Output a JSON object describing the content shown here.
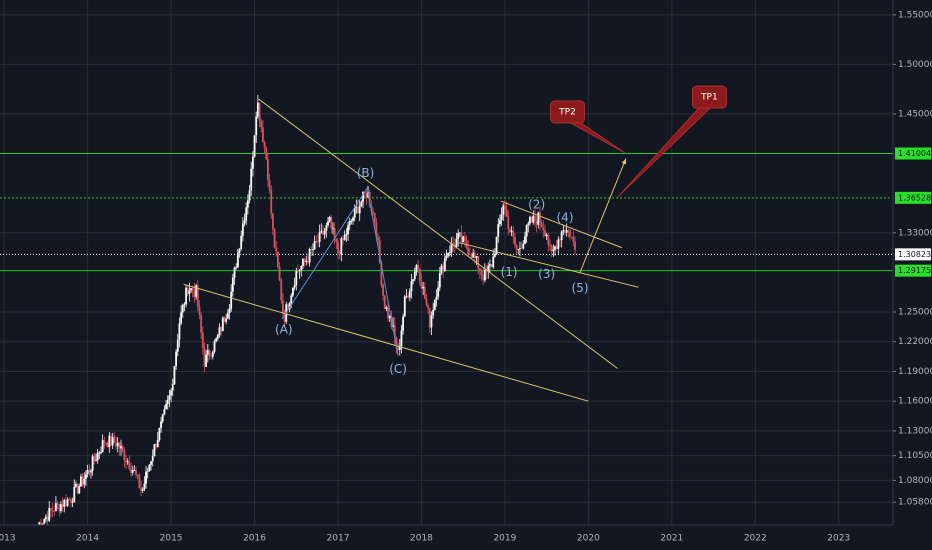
{
  "chart_data": {
    "type": "candlestick",
    "x_range": [
      2012.95,
      2023.65
    ],
    "y_range": [
      1.035,
      1.565
    ],
    "x_ticks": [
      {
        "value": 2013,
        "label": "2013"
      },
      {
        "value": 2014,
        "label": "2014"
      },
      {
        "value": 2015,
        "label": "2015"
      },
      {
        "value": 2016,
        "label": "2016"
      },
      {
        "value": 2017,
        "label": "2017"
      },
      {
        "value": 2018,
        "label": "2018"
      },
      {
        "value": 2019,
        "label": "2019"
      },
      {
        "value": 2020,
        "label": "2020"
      },
      {
        "value": 2021,
        "label": "2021"
      },
      {
        "value": 2022,
        "label": "2022"
      },
      {
        "value": 2023,
        "label": "2023"
      }
    ],
    "y_ticks": [
      {
        "value": 1.55,
        "label": "1.55000"
      },
      {
        "value": 1.5,
        "label": "1.50000"
      },
      {
        "value": 1.45,
        "label": "1.45000"
      },
      {
        "value": 1.33,
        "label": "1.33000"
      },
      {
        "value": 1.25,
        "label": "1.25000"
      },
      {
        "value": 1.22,
        "label": "1.22000"
      },
      {
        "value": 1.19,
        "label": "1.19000"
      },
      {
        "value": 1.16,
        "label": "1.16000"
      },
      {
        "value": 1.13,
        "label": "1.13000"
      },
      {
        "value": 1.105,
        "label": "1.10500"
      },
      {
        "value": 1.08,
        "label": "1.08000"
      },
      {
        "value": 1.058,
        "label": "1.05800"
      }
    ],
    "price_path": [
      [
        2013.4,
        1.035
      ],
      [
        2013.6,
        1.052
      ],
      [
        2013.8,
        1.062
      ],
      [
        2014.0,
        1.088
      ],
      [
        2014.2,
        1.12
      ],
      [
        2014.35,
        1.118
      ],
      [
        2014.55,
        1.09
      ],
      [
        2014.65,
        1.068
      ],
      [
        2014.75,
        1.1
      ],
      [
        2014.9,
        1.14
      ],
      [
        2015.0,
        1.17
      ],
      [
        2015.1,
        1.24
      ],
      [
        2015.2,
        1.275
      ],
      [
        2015.3,
        1.27
      ],
      [
        2015.4,
        1.2
      ],
      [
        2015.55,
        1.222
      ],
      [
        2015.7,
        1.26
      ],
      [
        2015.85,
        1.335
      ],
      [
        2015.95,
        1.38
      ],
      [
        2016.03,
        1.465
      ],
      [
        2016.15,
        1.4
      ],
      [
        2016.22,
        1.33
      ],
      [
        2016.3,
        1.28
      ],
      [
        2016.35,
        1.243
      ],
      [
        2016.5,
        1.29
      ],
      [
        2016.6,
        1.3
      ],
      [
        2016.75,
        1.32
      ],
      [
        2016.9,
        1.34
      ],
      [
        2017.0,
        1.31
      ],
      [
        2017.1,
        1.33
      ],
      [
        2017.2,
        1.35
      ],
      [
        2017.35,
        1.372
      ],
      [
        2017.45,
        1.34
      ],
      [
        2017.55,
        1.26
      ],
      [
        2017.65,
        1.235
      ],
      [
        2017.72,
        1.207
      ],
      [
        2017.8,
        1.26
      ],
      [
        2017.95,
        1.3
      ],
      [
        2018.1,
        1.24
      ],
      [
        2018.2,
        1.28
      ],
      [
        2018.3,
        1.31
      ],
      [
        2018.45,
        1.325
      ],
      [
        2018.6,
        1.31
      ],
      [
        2018.75,
        1.285
      ],
      [
        2018.85,
        1.3
      ],
      [
        2018.98,
        1.36
      ],
      [
        2019.05,
        1.335
      ],
      [
        2019.15,
        1.31
      ],
      [
        2019.3,
        1.34
      ],
      [
        2019.4,
        1.345
      ],
      [
        2019.5,
        1.33
      ],
      [
        2019.55,
        1.305
      ],
      [
        2019.62,
        1.32
      ],
      [
        2019.7,
        1.335
      ],
      [
        2019.78,
        1.33
      ],
      [
        2019.85,
        1.31
      ]
    ],
    "horizontal_levels": [
      {
        "price": 1.41004,
        "label": "1.41004",
        "style": "green-solid"
      },
      {
        "price": 1.36528,
        "label": "1.36528",
        "style": "green-dashed"
      },
      {
        "price": 1.30823,
        "label": "1.30823",
        "style": "white-dotted"
      },
      {
        "price": 1.29175,
        "label": "1.29175",
        "style": "green-solid"
      }
    ],
    "trendlines": [
      {
        "points": [
          [
            2016.05,
            1.465
          ],
          [
            2019.3,
            1.235
          ]
        ],
        "extended_to": [
          2020.35,
          1.193
        ],
        "color": "#d9c66a"
      },
      {
        "points": [
          [
            2015.15,
            1.278
          ],
          [
            2020.0,
            1.16
          ]
        ],
        "color": "#d9c66a"
      },
      {
        "points": [
          [
            2018.45,
            1.32
          ],
          [
            2020.6,
            1.275
          ]
        ],
        "color": "#d9c66a"
      },
      {
        "points": [
          [
            2018.95,
            1.362
          ],
          [
            2020.4,
            1.315
          ]
        ],
        "color": "#d9c66a"
      }
    ],
    "wave_path": [
      [
        2016.33,
        1.243
      ],
      [
        2017.35,
        1.375
      ],
      [
        2017.72,
        1.206
      ]
    ],
    "projection_arrow": {
      "from": [
        2019.9,
        1.29
      ],
      "to": [
        2020.45,
        1.405
      ],
      "color": "#d9c66a"
    },
    "wave_labels": [
      {
        "text": "(A)",
        "x": 2016.35,
        "y": 1.232
      },
      {
        "text": "(B)",
        "x": 2017.33,
        "y": 1.39
      },
      {
        "text": "(C)",
        "x": 2017.72,
        "y": 1.192
      },
      {
        "text": "(1)",
        "x": 2019.05,
        "y": 1.29
      },
      {
        "text": "(2)",
        "x": 2019.38,
        "y": 1.358
      },
      {
        "text": "(3)",
        "x": 2019.5,
        "y": 1.288
      },
      {
        "text": "(4)",
        "x": 2019.72,
        "y": 1.345
      },
      {
        "text": "(5)",
        "x": 2019.9,
        "y": 1.274
      }
    ],
    "targets": [
      {
        "label": "TP2",
        "x": 2019.75,
        "y": 1.452,
        "pointer_to": [
          2020.45,
          1.41
        ]
      },
      {
        "label": "TP1",
        "x": 2021.45,
        "y": 1.467,
        "pointer_to": [
          2020.35,
          1.366
        ]
      }
    ]
  },
  "colors": {
    "background": "#131722",
    "grid": "#2a2e39",
    "axis_text": "#b2b5be",
    "candle_up": "#ffffff",
    "candle_down": "#d9525e",
    "support_level": "#22cc22",
    "price_line": "#ffffff",
    "trendline": "#d9c66a",
    "wave_label": "#8fb3e0",
    "target_box": "#8b1a1a"
  }
}
